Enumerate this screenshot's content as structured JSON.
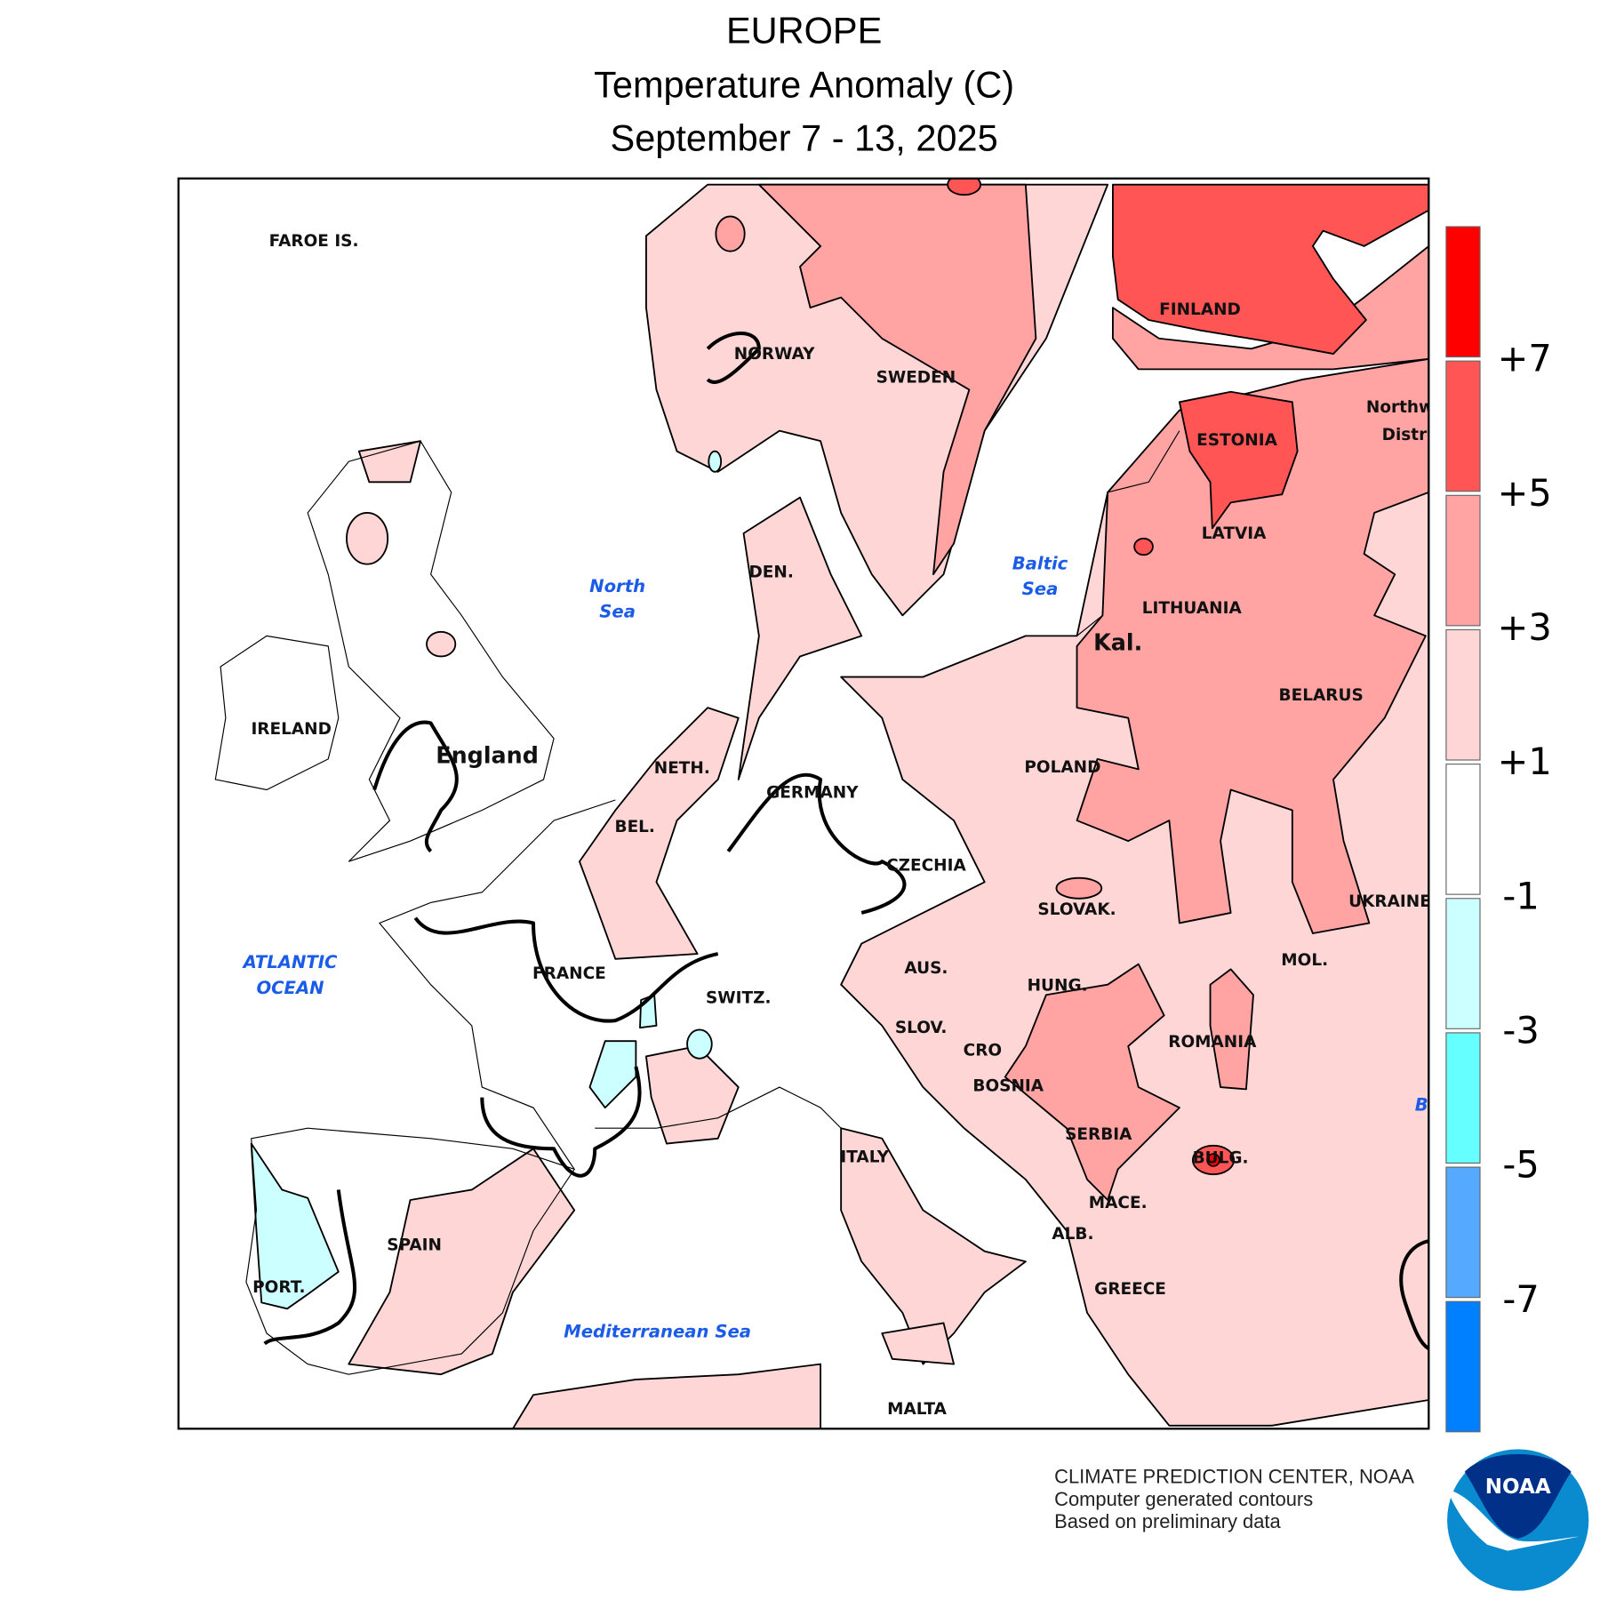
{
  "header": {
    "title": "EUROPE",
    "subtitle": "Temperature Anomaly (C)",
    "period": "September 7 - 13, 2025"
  },
  "legend": {
    "bins": [
      {
        "range": "> +7",
        "color": "#ff0000"
      },
      {
        "range": "+5 to +7",
        "color": "#ff5555"
      },
      {
        "range": "+3 to +5",
        "color": "#ffa3a3"
      },
      {
        "range": "+1 to +3",
        "color": "#ffd6d6"
      },
      {
        "range": "-1 to +1",
        "color": "#ffffff"
      },
      {
        "range": "-3 to -1",
        "color": "#ccffff"
      },
      {
        "range": "-5 to -3",
        "color": "#66ffff"
      },
      {
        "range": "-7 to -5",
        "color": "#55aaff"
      },
      {
        "range": "< -7",
        "color": "#0080ff"
      }
    ],
    "tick_labels": [
      "+7",
      "+5",
      "+3",
      "+1",
      "-1",
      "-3",
      "-5",
      "-7"
    ]
  },
  "map": {
    "labels": [
      {
        "text": "FAROE IS.",
        "kind": "region"
      },
      {
        "text": "NORWAY",
        "kind": "country"
      },
      {
        "text": "SWEDEN",
        "kind": "country"
      },
      {
        "text": "FINLAND",
        "kind": "country"
      },
      {
        "text": "ESTONIA",
        "kind": "country"
      },
      {
        "text": "Northw",
        "kind": "region"
      },
      {
        "text": "Distri",
        "kind": "region"
      },
      {
        "text": "LATVIA",
        "kind": "country"
      },
      {
        "text": "LITHUANIA",
        "kind": "country"
      },
      {
        "text": "Kal.",
        "kind": "region-big"
      },
      {
        "text": "BELARUS",
        "kind": "country"
      },
      {
        "text": "POLAND",
        "kind": "country"
      },
      {
        "text": "DEN.",
        "kind": "country"
      },
      {
        "text": "IRELAND",
        "kind": "country"
      },
      {
        "text": "England",
        "kind": "region-big"
      },
      {
        "text": "NETH.",
        "kind": "country"
      },
      {
        "text": "GERMANY",
        "kind": "country"
      },
      {
        "text": "BEL.",
        "kind": "country"
      },
      {
        "text": "CZECHIA",
        "kind": "country"
      },
      {
        "text": "SLOVAK.",
        "kind": "country"
      },
      {
        "text": "UKRAINE",
        "kind": "country"
      },
      {
        "text": "FRANCE",
        "kind": "country"
      },
      {
        "text": "AUS.",
        "kind": "country"
      },
      {
        "text": "MOL.",
        "kind": "country"
      },
      {
        "text": "HUNG.",
        "kind": "country"
      },
      {
        "text": "SWITZ.",
        "kind": "country"
      },
      {
        "text": "SLOV.",
        "kind": "country"
      },
      {
        "text": "ROMANIA",
        "kind": "country"
      },
      {
        "text": "CRO",
        "kind": "country"
      },
      {
        "text": "BOSNIA",
        "kind": "country"
      },
      {
        "text": "SERBIA",
        "kind": "country"
      },
      {
        "text": "ITALY",
        "kind": "country"
      },
      {
        "text": "BULG.",
        "kind": "country"
      },
      {
        "text": "MACE.",
        "kind": "country"
      },
      {
        "text": "ALB.",
        "kind": "country"
      },
      {
        "text": "SPAIN",
        "kind": "country"
      },
      {
        "text": "PORT.",
        "kind": "country"
      },
      {
        "text": "GREECE",
        "kind": "country"
      },
      {
        "text": "MALTA",
        "kind": "country"
      },
      {
        "text": "North",
        "kind": "sea"
      },
      {
        "text": "Sea",
        "kind": "sea"
      },
      {
        "text": "Baltic",
        "kind": "sea"
      },
      {
        "text": "Sea",
        "kind": "sea"
      },
      {
        "text": "ATLANTIC",
        "kind": "sea"
      },
      {
        "text": "OCEAN",
        "kind": "sea"
      },
      {
        "text": "Mediterranean Sea",
        "kind": "sea"
      },
      {
        "text": "B",
        "kind": "sea"
      }
    ]
  },
  "footer": {
    "line1": "CLIMATE PREDICTION CENTER, NOAA",
    "line2": "Computer generated contours",
    "line3": "Based on preliminary data",
    "logo_text": "NOAA",
    "logo_colors": {
      "dark": "#003087",
      "light": "#0a8bd0"
    }
  }
}
